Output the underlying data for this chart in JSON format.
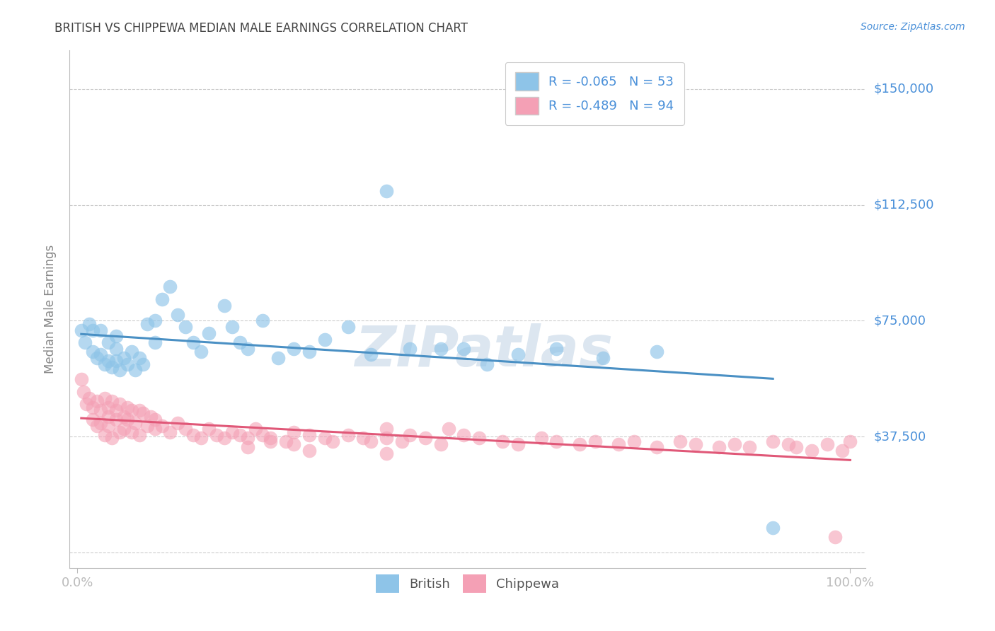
{
  "title": "BRITISH VS CHIPPEWA MEDIAN MALE EARNINGS CORRELATION CHART",
  "source": "Source: ZipAtlas.com",
  "ylabel": "Median Male Earnings",
  "yticks": [
    0,
    37500,
    75000,
    112500,
    150000
  ],
  "ytick_labels": [
    "",
    "$37,500",
    "$75,000",
    "$112,500",
    "$150,000"
  ],
  "ylim": [
    -5000,
    162500
  ],
  "xlim": [
    -0.01,
    1.02
  ],
  "xtick_labels": [
    "0.0%",
    "100.0%"
  ],
  "british_R": -0.065,
  "british_N": 53,
  "chippewa_R": -0.489,
  "chippewa_N": 94,
  "british_color": "#8ec4e8",
  "chippewa_color": "#f4a0b5",
  "british_line_color": "#4a90c4",
  "chippewa_line_color": "#e05878",
  "axis_color": "#bbbbbb",
  "grid_color": "#cccccc",
  "label_color": "#4a90d9",
  "title_color": "#444444",
  "watermark_color": "#dce6f0",
  "background_color": "#ffffff",
  "british_x": [
    0.005,
    0.01,
    0.015,
    0.02,
    0.02,
    0.025,
    0.03,
    0.03,
    0.035,
    0.04,
    0.04,
    0.045,
    0.05,
    0.05,
    0.05,
    0.055,
    0.06,
    0.065,
    0.07,
    0.075,
    0.08,
    0.085,
    0.09,
    0.1,
    0.1,
    0.11,
    0.12,
    0.13,
    0.14,
    0.15,
    0.16,
    0.17,
    0.19,
    0.2,
    0.21,
    0.22,
    0.24,
    0.26,
    0.28,
    0.3,
    0.32,
    0.35,
    0.38,
    0.4,
    0.43,
    0.47,
    0.5,
    0.53,
    0.57,
    0.62,
    0.68,
    0.75,
    0.9
  ],
  "british_y": [
    72000,
    68000,
    74000,
    65000,
    72000,
    63000,
    64000,
    72000,
    61000,
    62000,
    68000,
    60000,
    62000,
    66000,
    70000,
    59000,
    63000,
    61000,
    65000,
    59000,
    63000,
    61000,
    74000,
    68000,
    75000,
    82000,
    86000,
    77000,
    73000,
    68000,
    65000,
    71000,
    80000,
    73000,
    68000,
    66000,
    75000,
    63000,
    66000,
    65000,
    69000,
    73000,
    64000,
    117000,
    66000,
    66000,
    66000,
    61000,
    64000,
    66000,
    63000,
    65000,
    8000
  ],
  "chippewa_x": [
    0.005,
    0.008,
    0.012,
    0.015,
    0.02,
    0.02,
    0.025,
    0.025,
    0.03,
    0.03,
    0.035,
    0.035,
    0.04,
    0.04,
    0.04,
    0.045,
    0.045,
    0.05,
    0.05,
    0.055,
    0.055,
    0.06,
    0.06,
    0.065,
    0.065,
    0.07,
    0.07,
    0.075,
    0.08,
    0.08,
    0.085,
    0.09,
    0.095,
    0.1,
    0.1,
    0.11,
    0.12,
    0.13,
    0.14,
    0.15,
    0.16,
    0.17,
    0.18,
    0.19,
    0.2,
    0.21,
    0.22,
    0.23,
    0.24,
    0.25,
    0.27,
    0.28,
    0.3,
    0.32,
    0.33,
    0.35,
    0.37,
    0.38,
    0.4,
    0.4,
    0.42,
    0.43,
    0.45,
    0.47,
    0.48,
    0.5,
    0.52,
    0.55,
    0.57,
    0.6,
    0.62,
    0.65,
    0.67,
    0.7,
    0.72,
    0.75,
    0.78,
    0.8,
    0.83,
    0.85,
    0.87,
    0.9,
    0.92,
    0.93,
    0.95,
    0.97,
    0.98,
    0.99,
    1.0,
    0.22,
    0.25,
    0.28,
    0.3,
    0.4
  ],
  "chippewa_y": [
    56000,
    52000,
    48000,
    50000,
    47000,
    43000,
    41000,
    49000,
    46000,
    42000,
    38000,
    50000,
    47000,
    44000,
    41000,
    37000,
    49000,
    46000,
    43000,
    39000,
    48000,
    44000,
    40000,
    47000,
    43000,
    39000,
    46000,
    42000,
    46000,
    38000,
    45000,
    41000,
    44000,
    40000,
    43000,
    41000,
    39000,
    42000,
    40000,
    38000,
    37000,
    40000,
    38000,
    37000,
    39000,
    38000,
    37000,
    40000,
    38000,
    37000,
    36000,
    39000,
    38000,
    37000,
    36000,
    38000,
    37000,
    36000,
    37000,
    32000,
    36000,
    38000,
    37000,
    35000,
    40000,
    38000,
    37000,
    36000,
    35000,
    37000,
    36000,
    35000,
    36000,
    35000,
    36000,
    34000,
    36000,
    35000,
    34000,
    35000,
    34000,
    36000,
    35000,
    34000,
    33000,
    35000,
    5000,
    33000,
    36000,
    34000,
    36000,
    35000,
    33000,
    40000
  ]
}
